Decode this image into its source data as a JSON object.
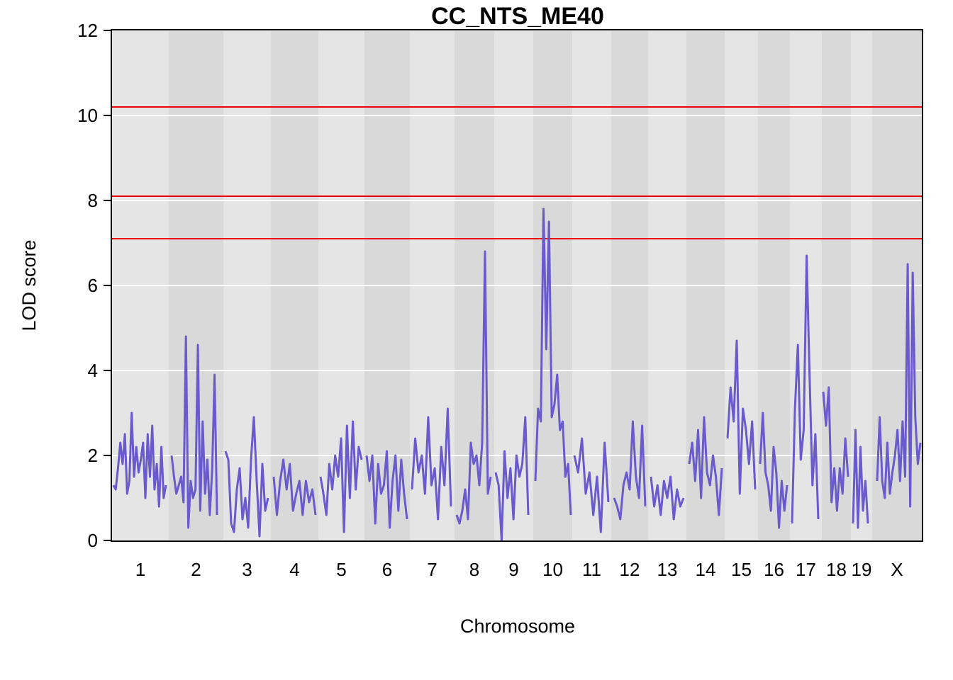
{
  "chart_data": {
    "type": "line",
    "title": "CC_NTS_ME40",
    "xlabel": "Chromosome",
    "ylabel": "LOD score",
    "ylim": [
      0,
      12
    ],
    "yticks": [
      "0",
      "2",
      "4",
      "6",
      "8",
      "10",
      "12"
    ],
    "grid": true,
    "colors": {
      "line": "#6a5acd",
      "threshold": "#ee0000",
      "band_light": "#e5e5e5",
      "band_dark": "#d9d9d9",
      "gridline": "#ffffff"
    },
    "thresholds": [
      10.2,
      8.1,
      7.1
    ],
    "chromosomes": [
      {
        "name": "1",
        "label": "1"
      },
      {
        "name": "2",
        "label": "2"
      },
      {
        "name": "3",
        "label": "3"
      },
      {
        "name": "4",
        "label": "4"
      },
      {
        "name": "5",
        "label": "5"
      },
      {
        "name": "6",
        "label": "6"
      },
      {
        "name": "7",
        "label": "7"
      },
      {
        "name": "8",
        "label": "8"
      },
      {
        "name": "9",
        "label": "9"
      },
      {
        "name": "10",
        "label": "10"
      },
      {
        "name": "11",
        "label": "11"
      },
      {
        "name": "12",
        "label": "12"
      },
      {
        "name": "13",
        "label": "13"
      },
      {
        "name": "14",
        "label": "14"
      },
      {
        "name": "15",
        "label": "15"
      },
      {
        "name": "16",
        "label": "16"
      },
      {
        "name": "17",
        "label": "17"
      },
      {
        "name": "18",
        "label": "18"
      },
      {
        "name": "19",
        "label": "19"
      },
      {
        "name": "X",
        "label": "X"
      }
    ],
    "series": [
      {
        "chromosome": "1",
        "values": [
          1.3,
          1.2,
          1.7,
          2.3,
          1.8,
          2.5,
          1.1,
          1.4,
          3.0,
          1.5,
          2.2,
          1.6,
          1.9,
          2.3,
          1.0,
          2.5,
          1.5,
          2.7,
          1.2,
          1.8,
          0.8,
          2.2,
          1.0,
          1.3
        ]
      },
      {
        "chromosome": "2",
        "values": [
          2.0,
          1.5,
          1.1,
          1.3,
          1.5,
          0.9,
          4.8,
          0.3,
          1.4,
          1.0,
          1.2,
          4.6,
          0.7,
          2.8,
          1.1,
          1.9,
          0.6,
          1.7,
          3.9,
          0.6
        ]
      },
      {
        "chromosome": "3",
        "values": [
          2.1,
          1.9,
          0.4,
          0.2,
          1.2,
          1.7,
          0.5,
          1.0,
          0.3,
          1.9,
          2.9,
          1.4,
          0.1,
          1.8,
          0.7,
          1.0
        ]
      },
      {
        "chromosome": "4",
        "values": [
          1.5,
          0.6,
          1.4,
          1.9,
          1.2,
          1.8,
          0.7,
          1.1,
          1.4,
          0.6,
          1.4,
          0.9,
          1.2,
          0.6
        ]
      },
      {
        "chromosome": "5",
        "values": [
          1.5,
          1.1,
          0.6,
          1.8,
          1.2,
          2.0,
          1.5,
          2.4,
          0.2,
          2.7,
          1.0,
          2.8,
          1.2,
          2.2,
          1.9
        ]
      },
      {
        "chromosome": "6",
        "values": [
          2.0,
          1.4,
          2.0,
          0.4,
          1.8,
          1.1,
          1.3,
          2.1,
          0.3,
          1.4,
          2.0,
          0.7,
          1.9,
          1.1,
          0.5
        ]
      },
      {
        "chromosome": "7",
        "values": [
          1.2,
          2.4,
          1.6,
          2.0,
          1.1,
          2.9,
          1.3,
          1.7,
          0.5,
          2.2,
          1.3,
          3.1,
          0.8
        ]
      },
      {
        "chromosome": "8",
        "values": [
          0.6,
          0.4,
          0.7,
          1.2,
          0.5,
          2.3,
          1.8,
          2.0,
          1.3,
          2.3,
          6.8,
          1.1,
          1.5
        ]
      },
      {
        "chromosome": "9",
        "values": [
          1.6,
          1.3,
          0.0,
          2.1,
          1.0,
          1.7,
          0.5,
          2.0,
          1.5,
          1.8,
          2.9,
          0.6
        ]
      },
      {
        "chromosome": "10",
        "values": [
          1.4,
          3.1,
          2.8,
          7.8,
          4.5,
          7.5,
          2.9,
          3.2,
          3.9,
          2.6,
          2.8,
          1.5,
          1.8,
          0.6
        ]
      },
      {
        "chromosome": "11",
        "values": [
          2.0,
          1.6,
          2.4,
          1.1,
          1.6,
          0.6,
          1.5,
          0.2,
          2.3,
          0.9
        ]
      },
      {
        "chromosome": "12",
        "values": [
          1.0,
          0.8,
          0.5,
          1.3,
          1.6,
          1.2,
          2.8,
          1.5,
          1.0,
          2.7,
          0.8
        ]
      },
      {
        "chromosome": "13",
        "values": [
          1.5,
          0.8,
          1.3,
          0.6,
          1.4,
          1.0,
          1.5,
          0.5,
          1.2,
          0.8,
          1.0
        ]
      },
      {
        "chromosome": "14",
        "values": [
          1.8,
          2.3,
          1.4,
          2.6,
          1.0,
          2.9,
          1.6,
          1.3,
          2.0,
          1.5,
          0.6,
          1.7
        ]
      },
      {
        "chromosome": "15",
        "values": [
          2.4,
          3.6,
          2.8,
          4.7,
          1.1,
          3.1,
          2.6,
          1.8,
          2.8,
          1.2
        ]
      },
      {
        "chromosome": "16",
        "values": [
          1.8,
          3.0,
          1.6,
          1.3,
          0.7,
          2.2,
          1.6,
          0.3,
          1.4,
          0.7,
          1.3
        ]
      },
      {
        "chromosome": "17",
        "values": [
          0.4,
          3.1,
          4.6,
          1.9,
          2.6,
          6.7,
          3.9,
          1.3,
          2.5,
          0.5
        ]
      },
      {
        "chromosome": "18",
        "values": [
          3.5,
          2.7,
          3.6,
          0.9,
          1.7,
          0.7,
          1.7,
          1.1,
          2.4,
          1.5
        ]
      },
      {
        "chromosome": "19",
        "values": [
          0.4,
          2.6,
          0.3,
          2.2,
          0.7,
          1.4,
          0.4
        ]
      },
      {
        "chromosome": "X",
        "values": [
          1.4,
          2.9,
          1.4,
          1.0,
          2.3,
          1.1,
          1.6,
          2.0,
          2.6,
          1.4,
          2.8,
          1.5,
          6.5,
          0.8,
          6.3,
          2.9,
          1.8,
          2.3
        ]
      }
    ]
  }
}
